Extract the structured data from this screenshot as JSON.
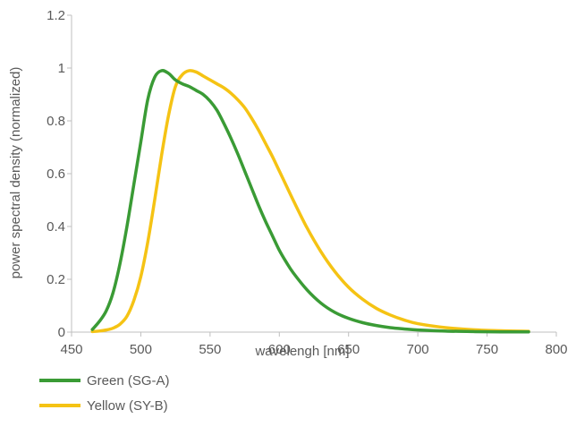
{
  "chart_data": {
    "type": "line",
    "title": "",
    "xlabel": "wavelengh [nm]",
    "ylabel": "power spectral density (normalized)",
    "xlim": [
      450,
      800
    ],
    "ylim": [
      0,
      1.2
    ],
    "x_ticks": [
      450,
      500,
      550,
      600,
      650,
      700,
      750,
      800
    ],
    "y_ticks": [
      0,
      0.2,
      0.4,
      0.6,
      0.8,
      1,
      1.2
    ],
    "x_tick_labels": [
      "450",
      "500",
      "550",
      "600",
      "650",
      "700",
      "750",
      "800"
    ],
    "y_tick_labels": [
      "0",
      "0.2",
      "0.4",
      "0.6",
      "0.8",
      "1",
      "1.2"
    ],
    "grid": false,
    "legend_position": "bottom-left",
    "series": [
      {
        "name": "Green (SG-A)",
        "color": "#3a9b35",
        "points": [
          [
            465,
            0.01
          ],
          [
            470,
            0.04
          ],
          [
            475,
            0.08
          ],
          [
            480,
            0.15
          ],
          [
            485,
            0.26
          ],
          [
            490,
            0.4
          ],
          [
            495,
            0.56
          ],
          [
            500,
            0.72
          ],
          [
            505,
            0.88
          ],
          [
            510,
            0.965
          ],
          [
            515,
            0.99
          ],
          [
            520,
            0.98
          ],
          [
            525,
            0.955
          ],
          [
            530,
            0.94
          ],
          [
            535,
            0.93
          ],
          [
            540,
            0.915
          ],
          [
            545,
            0.9
          ],
          [
            550,
            0.875
          ],
          [
            555,
            0.84
          ],
          [
            560,
            0.79
          ],
          [
            565,
            0.735
          ],
          [
            570,
            0.675
          ],
          [
            575,
            0.61
          ],
          [
            580,
            0.545
          ],
          [
            585,
            0.48
          ],
          [
            590,
            0.42
          ],
          [
            595,
            0.365
          ],
          [
            600,
            0.31
          ],
          [
            605,
            0.265
          ],
          [
            610,
            0.225
          ],
          [
            620,
            0.16
          ],
          [
            630,
            0.11
          ],
          [
            640,
            0.075
          ],
          [
            650,
            0.052
          ],
          [
            660,
            0.036
          ],
          [
            670,
            0.025
          ],
          [
            680,
            0.017
          ],
          [
            690,
            0.012
          ],
          [
            700,
            0.008
          ],
          [
            720,
            0.004
          ],
          [
            740,
            0.002
          ],
          [
            760,
            0.001
          ],
          [
            780,
            0.001
          ]
        ]
      },
      {
        "name": "Yellow (SY-B)",
        "color": "#f5c314",
        "points": [
          [
            465,
            0.002
          ],
          [
            470,
            0.004
          ],
          [
            475,
            0.008
          ],
          [
            480,
            0.015
          ],
          [
            485,
            0.03
          ],
          [
            490,
            0.06
          ],
          [
            495,
            0.12
          ],
          [
            500,
            0.21
          ],
          [
            505,
            0.34
          ],
          [
            510,
            0.5
          ],
          [
            515,
            0.67
          ],
          [
            520,
            0.82
          ],
          [
            525,
            0.93
          ],
          [
            530,
            0.975
          ],
          [
            535,
            0.99
          ],
          [
            540,
            0.985
          ],
          [
            545,
            0.97
          ],
          [
            550,
            0.955
          ],
          [
            555,
            0.94
          ],
          [
            560,
            0.925
          ],
          [
            565,
            0.905
          ],
          [
            570,
            0.88
          ],
          [
            575,
            0.85
          ],
          [
            580,
            0.81
          ],
          [
            585,
            0.765
          ],
          [
            590,
            0.715
          ],
          [
            595,
            0.665
          ],
          [
            600,
            0.61
          ],
          [
            605,
            0.555
          ],
          [
            610,
            0.5
          ],
          [
            620,
            0.395
          ],
          [
            630,
            0.305
          ],
          [
            640,
            0.23
          ],
          [
            650,
            0.17
          ],
          [
            660,
            0.125
          ],
          [
            670,
            0.09
          ],
          [
            680,
            0.065
          ],
          [
            690,
            0.046
          ],
          [
            700,
            0.032
          ],
          [
            720,
            0.017
          ],
          [
            740,
            0.009
          ],
          [
            760,
            0.005
          ],
          [
            780,
            0.003
          ]
        ]
      }
    ]
  }
}
